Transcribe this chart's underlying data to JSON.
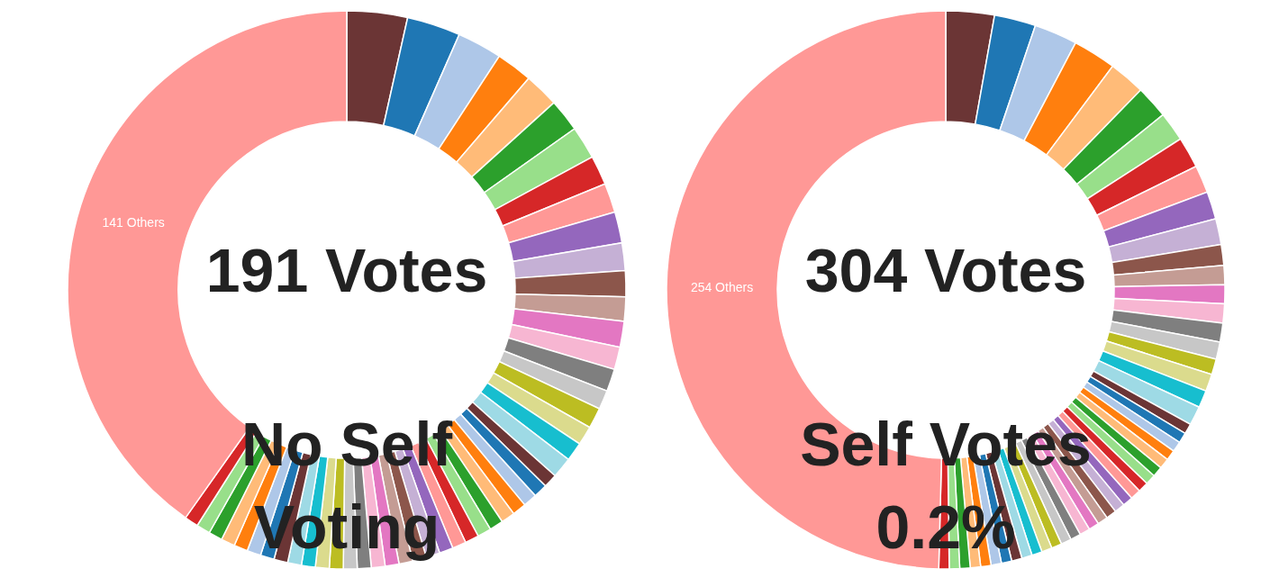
{
  "chart_data": [
    {
      "type": "donut",
      "title": "191 Votes",
      "annotations": [
        "No Self Voting"
      ],
      "categories": [
        null,
        null,
        null,
        null,
        null,
        null,
        null,
        null,
        null,
        null,
        null,
        null,
        null,
        null,
        null,
        null,
        null,
        null,
        null,
        null,
        null,
        null,
        null,
        null,
        null,
        null,
        null,
        null,
        null,
        null,
        null,
        null,
        null,
        null,
        null,
        null,
        null,
        null,
        null,
        null,
        null,
        null,
        null,
        null,
        null,
        null,
        null,
        null,
        null,
        null,
        "141 Others"
      ],
      "values": [
        3.5,
        3.1,
        2.6,
        2.1,
        2.0,
        1.9,
        1.9,
        1.7,
        1.7,
        1.8,
        1.6,
        1.5,
        1.4,
        1.5,
        1.3,
        1.3,
        1.1,
        1.2,
        1.1,
        1.1,
        1.2,
        0.8,
        0.8,
        0.8,
        0.8,
        0.8,
        0.8,
        0.8,
        0.8,
        0.8,
        0.8,
        0.8,
        0.8,
        0.8,
        0.8,
        0.8,
        0.8,
        0.8,
        0.8,
        0.8,
        0.8,
        0.8,
        0.8,
        0.8,
        0.8,
        0.8,
        0.8,
        0.8,
        0.8,
        0.8,
        40.2
      ],
      "colors": [
        "#6b3535",
        "#1f77b4",
        "#aec7e8",
        "#ff7f0e",
        "#ffbb78",
        "#2ca02c",
        "#98df8a",
        "#d62728",
        "#ff9896",
        "#9467bd",
        "#c5b0d5",
        "#8c564b",
        "#c49c94",
        "#e377c2",
        "#f7b6d2",
        "#7f7f7f",
        "#c7c7c7",
        "#bcbd22",
        "#dbdb8d",
        "#17becf",
        "#9edae5",
        "#6b3535",
        "#1f77b4",
        "#aec7e8",
        "#ff7f0e",
        "#ffbb78",
        "#2ca02c",
        "#98df8a",
        "#d62728",
        "#ff9896",
        "#9467bd",
        "#c5b0d5",
        "#8c564b",
        "#c49c94",
        "#e377c2",
        "#f7b6d2",
        "#7f7f7f",
        "#c7c7c7",
        "#bcbd22",
        "#dbdb8d",
        "#17becf",
        "#9edae5",
        "#6b3535",
        "#1f77b4",
        "#aec7e8",
        "#ff7f0e",
        "#ffbb78",
        "#2ca02c",
        "#98df8a",
        "#d62728",
        "#ff9896"
      ]
    },
    {
      "type": "donut",
      "title": "304 Votes",
      "annotations": [
        "Self Votes 0.2%"
      ],
      "categories": [
        null,
        null,
        null,
        null,
        null,
        null,
        null,
        null,
        null,
        null,
        null,
        null,
        null,
        null,
        null,
        null,
        null,
        null,
        null,
        null,
        null,
        null,
        null,
        null,
        null,
        null,
        null,
        null,
        null,
        null,
        null,
        null,
        null,
        null,
        null,
        null,
        null,
        null,
        null,
        null,
        null,
        null,
        null,
        null,
        null,
        null,
        null,
        null,
        null,
        null,
        "254 Others"
      ],
      "values": [
        2.8,
        2.4,
        2.5,
        2.5,
        2.1,
        1.9,
        1.7,
        1.8,
        1.6,
        1.6,
        1.5,
        1.2,
        1.1,
        1.1,
        1.1,
        1.1,
        1.0,
        0.9,
        1.0,
        1.0,
        1.1,
        0.6,
        0.6,
        0.6,
        0.6,
        0.6,
        0.6,
        0.6,
        0.6,
        0.6,
        0.6,
        0.6,
        0.6,
        0.6,
        0.6,
        0.6,
        0.6,
        0.6,
        0.6,
        0.6,
        0.6,
        0.6,
        0.6,
        0.6,
        0.6,
        0.6,
        0.6,
        0.6,
        0.6,
        0.6,
        49.6
      ],
      "colors": [
        "#6b3535",
        "#1f77b4",
        "#aec7e8",
        "#ff7f0e",
        "#ffbb78",
        "#2ca02c",
        "#98df8a",
        "#d62728",
        "#ff9896",
        "#9467bd",
        "#c5b0d5",
        "#8c564b",
        "#c49c94",
        "#e377c2",
        "#f7b6d2",
        "#7f7f7f",
        "#c7c7c7",
        "#bcbd22",
        "#dbdb8d",
        "#17becf",
        "#9edae5",
        "#6b3535",
        "#1f77b4",
        "#aec7e8",
        "#ff7f0e",
        "#ffbb78",
        "#2ca02c",
        "#98df8a",
        "#d62728",
        "#ff9896",
        "#9467bd",
        "#c5b0d5",
        "#8c564b",
        "#c49c94",
        "#e377c2",
        "#f7b6d2",
        "#7f7f7f",
        "#c7c7c7",
        "#bcbd22",
        "#dbdb8d",
        "#17becf",
        "#9edae5",
        "#6b3535",
        "#1f77b4",
        "#aec7e8",
        "#ff7f0e",
        "#ffbb78",
        "#2ca02c",
        "#98df8a",
        "#d62728",
        "#ff9896"
      ]
    }
  ]
}
